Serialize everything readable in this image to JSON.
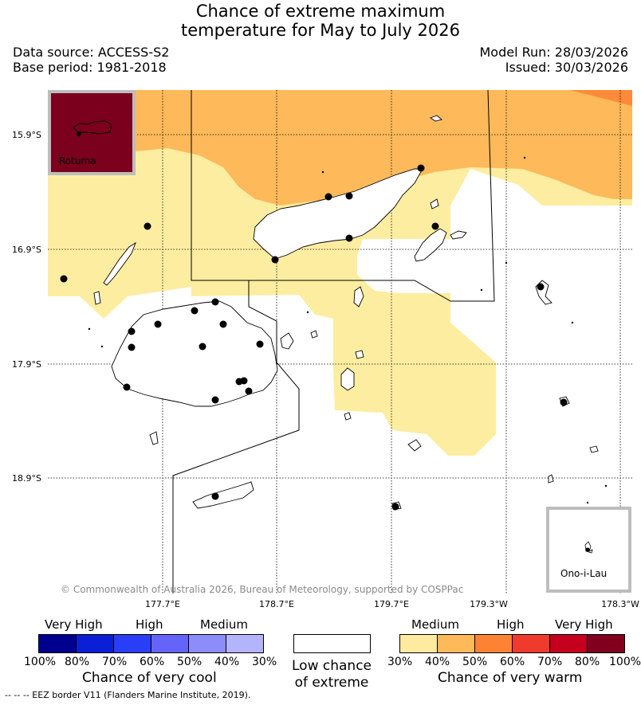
{
  "header": {
    "title_line1": "Chance of extreme maximum",
    "title_line2": "temperature for May to July 2026",
    "data_source": "Data source: ACCESS-S2",
    "base_period": "Base period: 1981-2018",
    "model_run": "Model Run: 28/03/2026",
    "issued": "Issued: 30/03/2026"
  },
  "map": {
    "latitude_labels": [
      "15.9°S",
      "16.9°S",
      "17.9°S",
      "18.9°S"
    ],
    "longitude_labels": [
      "177.7°E",
      "178.7°E",
      "179.7°E",
      "179.3°W",
      "178.3°W"
    ],
    "inset_rotuma": "Rotuma",
    "inset_ono": "Ono-i-Lau",
    "copyright": "© Commonwealth of Australia 2026, Bureau of Meteorology, supported by COSPPac",
    "colors": {
      "medium_warm": "#fdeda0",
      "high_warm_40": "#fdb95a",
      "high_warm_50": "#fd8a3a",
      "very_high_80": "#7a001e",
      "land_outline": "#000000"
    }
  },
  "legend": {
    "cool": {
      "headers": [
        "Very High",
        "High",
        "Medium"
      ],
      "ticks": [
        "100%",
        "80%",
        "70%",
        "60%",
        "50%",
        "40%",
        "30%"
      ],
      "colors": [
        "#00008f",
        "#0a1fd6",
        "#2a3df7",
        "#6464f8",
        "#8c8cfb",
        "#b4b4fd"
      ],
      "caption": "Chance of very cool"
    },
    "low": {
      "caption_line1": "Low chance",
      "caption_line2": "of extreme"
    },
    "warm": {
      "headers": [
        "Medium",
        "High",
        "Very High"
      ],
      "ticks": [
        "30%",
        "40%",
        "50%",
        "60%",
        "70%",
        "80%",
        "100%"
      ],
      "colors": [
        "#feeba0",
        "#feb95a",
        "#fe8233",
        "#ef3b2c",
        "#c4001e",
        "#80001e"
      ],
      "caption": "Chance of very warm"
    }
  },
  "footnote": "-- -- -- EEZ border V11 (Flanders Marine Institute, 2019)."
}
